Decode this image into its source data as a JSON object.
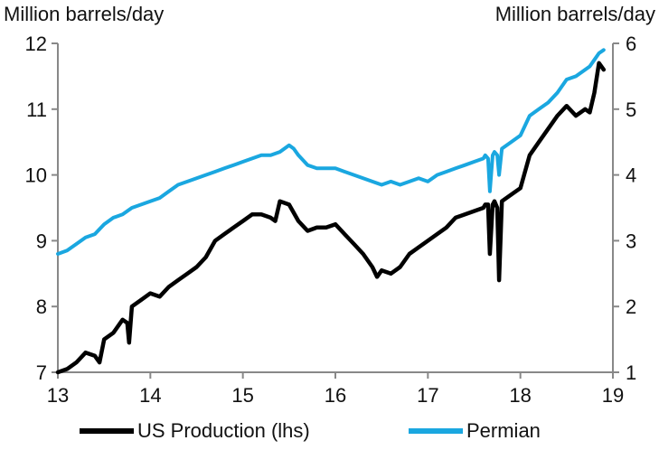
{
  "chart_data": {
    "type": "line",
    "title": "",
    "xlabel": "",
    "ylabel_left": "Million barrels/day",
    "ylabel_right": "Million barrels/day",
    "xlim": [
      2013,
      2019
    ],
    "ylim_left": [
      7,
      12
    ],
    "ylim_right": [
      1,
      6
    ],
    "x_ticks": [
      13,
      14,
      15,
      16,
      17,
      18,
      19
    ],
    "y_ticks_left": [
      7,
      8,
      9,
      10,
      11,
      12
    ],
    "y_ticks_right": [
      1,
      2,
      3,
      4,
      5,
      6
    ],
    "grid": false,
    "legend_position": "bottom",
    "colors": {
      "us": "#000000",
      "permian": "#1aa7e0",
      "axis": "#888888"
    },
    "series": [
      {
        "name": "US Production (lhs)",
        "axis": "left",
        "x": [
          2013.0,
          2013.1,
          2013.2,
          2013.3,
          2013.4,
          2013.45,
          2013.5,
          2013.6,
          2013.7,
          2013.75,
          2013.77,
          2013.8,
          2013.9,
          2014.0,
          2014.1,
          2014.2,
          2014.3,
          2014.4,
          2014.5,
          2014.6,
          2014.7,
          2014.8,
          2014.9,
          2015.0,
          2015.1,
          2015.2,
          2015.3,
          2015.35,
          2015.4,
          2015.5,
          2015.6,
          2015.7,
          2015.8,
          2015.9,
          2016.0,
          2016.1,
          2016.2,
          2016.3,
          2016.4,
          2016.45,
          2016.5,
          2016.6,
          2016.7,
          2016.8,
          2016.9,
          2017.0,
          2017.1,
          2017.2,
          2017.3,
          2017.4,
          2017.5,
          2017.6,
          2017.62,
          2017.65,
          2017.67,
          2017.7,
          2017.72,
          2017.75,
          2017.77,
          2017.8,
          2017.9,
          2018.0,
          2018.1,
          2018.2,
          2018.3,
          2018.4,
          2018.5,
          2018.6,
          2018.7,
          2018.75,
          2018.8,
          2018.85,
          2018.9
        ],
        "values": [
          7.0,
          7.05,
          7.15,
          7.3,
          7.25,
          7.15,
          7.5,
          7.6,
          7.8,
          7.75,
          7.45,
          8.0,
          8.1,
          8.2,
          8.15,
          8.3,
          8.4,
          8.5,
          8.6,
          8.75,
          9.0,
          9.1,
          9.2,
          9.3,
          9.4,
          9.4,
          9.35,
          9.3,
          9.6,
          9.55,
          9.3,
          9.15,
          9.2,
          9.2,
          9.25,
          9.1,
          8.95,
          8.8,
          8.6,
          8.45,
          8.55,
          8.5,
          8.6,
          8.8,
          8.9,
          9.0,
          9.1,
          9.2,
          9.35,
          9.4,
          9.45,
          9.5,
          9.55,
          9.55,
          8.8,
          9.55,
          9.6,
          9.5,
          8.4,
          9.6,
          9.7,
          9.8,
          10.3,
          10.5,
          10.7,
          10.9,
          11.05,
          10.9,
          11.0,
          10.95,
          11.25,
          11.7,
          11.6
        ]
      },
      {
        "name": "Permian",
        "axis": "right",
        "x": [
          2013.0,
          2013.1,
          2013.2,
          2013.3,
          2013.4,
          2013.5,
          2013.6,
          2013.7,
          2013.8,
          2013.9,
          2014.0,
          2014.1,
          2014.2,
          2014.3,
          2014.4,
          2014.5,
          2014.6,
          2014.7,
          2014.8,
          2014.9,
          2015.0,
          2015.1,
          2015.2,
          2015.3,
          2015.4,
          2015.5,
          2015.55,
          2015.6,
          2015.7,
          2015.8,
          2015.9,
          2016.0,
          2016.1,
          2016.2,
          2016.3,
          2016.4,
          2016.5,
          2016.6,
          2016.7,
          2016.8,
          2016.9,
          2017.0,
          2017.1,
          2017.2,
          2017.3,
          2017.4,
          2017.5,
          2017.6,
          2017.62,
          2017.65,
          2017.67,
          2017.7,
          2017.72,
          2017.75,
          2017.77,
          2017.8,
          2017.9,
          2018.0,
          2018.1,
          2018.2,
          2018.3,
          2018.4,
          2018.5,
          2018.6,
          2018.7,
          2018.75,
          2018.8,
          2018.85,
          2018.9
        ],
        "values": [
          2.8,
          2.85,
          2.95,
          3.05,
          3.1,
          3.25,
          3.35,
          3.4,
          3.5,
          3.55,
          3.6,
          3.65,
          3.75,
          3.85,
          3.9,
          3.95,
          4.0,
          4.05,
          4.1,
          4.15,
          4.2,
          4.25,
          4.3,
          4.3,
          4.35,
          4.45,
          4.4,
          4.3,
          4.15,
          4.1,
          4.1,
          4.1,
          4.05,
          4.0,
          3.95,
          3.9,
          3.85,
          3.9,
          3.85,
          3.9,
          3.95,
          3.9,
          4.0,
          4.05,
          4.1,
          4.15,
          4.2,
          4.25,
          4.3,
          4.25,
          3.75,
          4.3,
          4.35,
          4.3,
          4.0,
          4.4,
          4.5,
          4.6,
          4.9,
          5.0,
          5.1,
          5.25,
          5.45,
          5.5,
          5.6,
          5.65,
          5.75,
          5.85,
          5.9
        ]
      }
    ]
  }
}
